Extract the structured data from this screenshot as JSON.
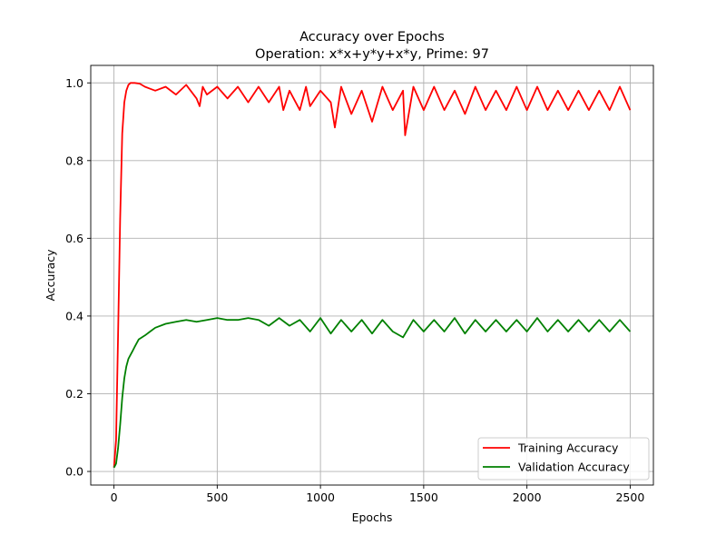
{
  "chart_data": {
    "type": "line",
    "title": "Accuracy over Epochs",
    "subtitle": "Operation: x*x+y*y+x*y, Prime: 97",
    "xlabel": "Epochs",
    "ylabel": "Accuracy",
    "xlim": [
      -112.5,
      2612.5
    ],
    "ylim": [
      -0.035,
      1.045
    ],
    "xticks": [
      0,
      500,
      1000,
      1500,
      2000,
      2500
    ],
    "xtick_labels": [
      "0",
      "500",
      "1000",
      "1500",
      "2000",
      "2500"
    ],
    "yticks": [
      0.0,
      0.2,
      0.4,
      0.6,
      0.8,
      1.0
    ],
    "ytick_labels": [
      "0.0",
      "0.2",
      "0.4",
      "0.6",
      "0.8",
      "1.0"
    ],
    "grid": true,
    "legend": {
      "position": "bottom-right"
    },
    "series": [
      {
        "name": "Training Accuracy",
        "color": "#ff0000",
        "x": [
          0,
          10,
          20,
          30,
          40,
          50,
          60,
          70,
          80,
          90,
          100,
          125,
          150,
          175,
          200,
          250,
          300,
          350,
          400,
          415,
          430,
          450,
          500,
          550,
          600,
          650,
          700,
          750,
          800,
          820,
          850,
          900,
          930,
          950,
          1000,
          1050,
          1070,
          1100,
          1150,
          1200,
          1250,
          1300,
          1350,
          1400,
          1410,
          1450,
          1500,
          1550,
          1600,
          1650,
          1700,
          1750,
          1800,
          1850,
          1900,
          1950,
          2000,
          2050,
          2100,
          2150,
          2200,
          2250,
          2300,
          2350,
          2400,
          2450,
          2500
        ],
        "y": [
          0.01,
          0.08,
          0.35,
          0.65,
          0.87,
          0.95,
          0.98,
          0.995,
          1.0,
          1.0,
          1.0,
          0.998,
          0.99,
          0.985,
          0.98,
          0.99,
          0.97,
          0.995,
          0.96,
          0.94,
          0.99,
          0.97,
          0.99,
          0.96,
          0.99,
          0.95,
          0.99,
          0.95,
          0.99,
          0.93,
          0.98,
          0.93,
          0.99,
          0.94,
          0.98,
          0.95,
          0.885,
          0.99,
          0.92,
          0.98,
          0.9,
          0.99,
          0.93,
          0.98,
          0.865,
          0.99,
          0.93,
          0.99,
          0.93,
          0.98,
          0.92,
          0.99,
          0.93,
          0.98,
          0.93,
          0.99,
          0.93,
          0.99,
          0.93,
          0.98,
          0.93,
          0.98,
          0.93,
          0.98,
          0.93,
          0.99,
          0.93
        ]
      },
      {
        "name": "Validation Accuracy",
        "color": "#008000",
        "x": [
          0,
          10,
          20,
          30,
          40,
          50,
          60,
          70,
          80,
          90,
          100,
          120,
          150,
          175,
          200,
          250,
          300,
          350,
          400,
          450,
          500,
          550,
          600,
          650,
          700,
          750,
          800,
          850,
          900,
          950,
          1000,
          1050,
          1100,
          1150,
          1200,
          1250,
          1300,
          1350,
          1400,
          1450,
          1500,
          1550,
          1600,
          1650,
          1700,
          1750,
          1800,
          1850,
          1900,
          1950,
          2000,
          2050,
          2100,
          2150,
          2200,
          2250,
          2300,
          2350,
          2400,
          2450,
          2500
        ],
        "y": [
          0.01,
          0.02,
          0.06,
          0.12,
          0.19,
          0.24,
          0.27,
          0.29,
          0.3,
          0.31,
          0.32,
          0.34,
          0.35,
          0.36,
          0.37,
          0.38,
          0.385,
          0.39,
          0.385,
          0.39,
          0.395,
          0.39,
          0.39,
          0.395,
          0.39,
          0.375,
          0.395,
          0.375,
          0.39,
          0.36,
          0.395,
          0.355,
          0.39,
          0.36,
          0.39,
          0.355,
          0.39,
          0.36,
          0.345,
          0.39,
          0.36,
          0.39,
          0.36,
          0.395,
          0.355,
          0.39,
          0.36,
          0.39,
          0.36,
          0.39,
          0.36,
          0.395,
          0.36,
          0.39,
          0.36,
          0.39,
          0.36,
          0.39,
          0.36,
          0.39,
          0.36
        ]
      }
    ]
  }
}
